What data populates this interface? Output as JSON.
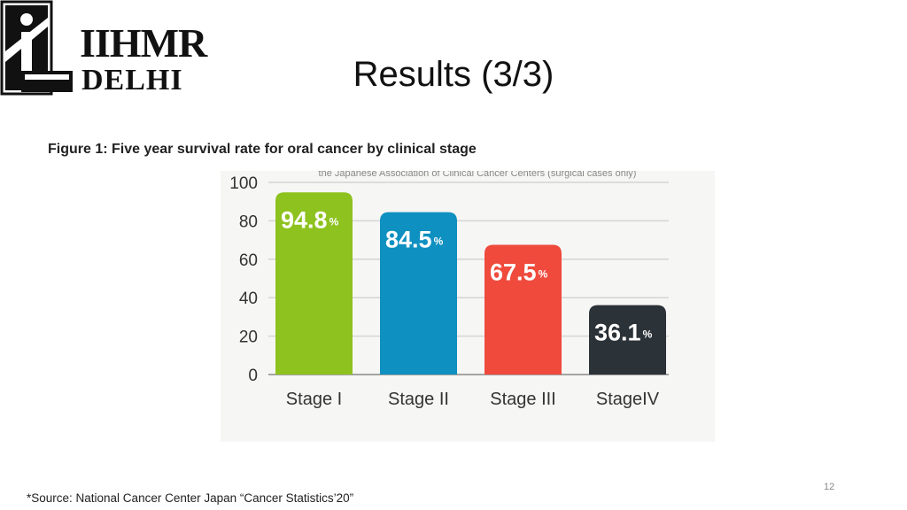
{
  "slide": {
    "title": "Results (3/3)",
    "figure_caption": "Figure 1: Five year survival rate for oral cancer by clinical stage",
    "chart_header_partial": "the Japanese Association of Clinical Cancer Centers (surgical cases only)",
    "source": "*Source: National Cancer Center Japan “Cancer Statistics’20”",
    "page_number": "12",
    "logo_text": {
      "main": "IIHMR",
      "sub": "DELHI"
    }
  },
  "chart_data": {
    "type": "bar",
    "title": "",
    "xlabel": "",
    "ylabel": "",
    "categories": [
      "Stage I",
      "Stage II",
      "Stage III",
      "StageIV"
    ],
    "values": [
      94.8,
      84.5,
      67.5,
      36.1
    ],
    "value_suffix": "%",
    "ylim": [
      0,
      100
    ],
    "yticks": [
      0,
      20,
      40,
      60,
      80,
      100
    ],
    "grid": true,
    "legend": "none",
    "colors": [
      "#8dc21f",
      "#0e90c0",
      "#ef4a3c",
      "#2b3238"
    ]
  }
}
